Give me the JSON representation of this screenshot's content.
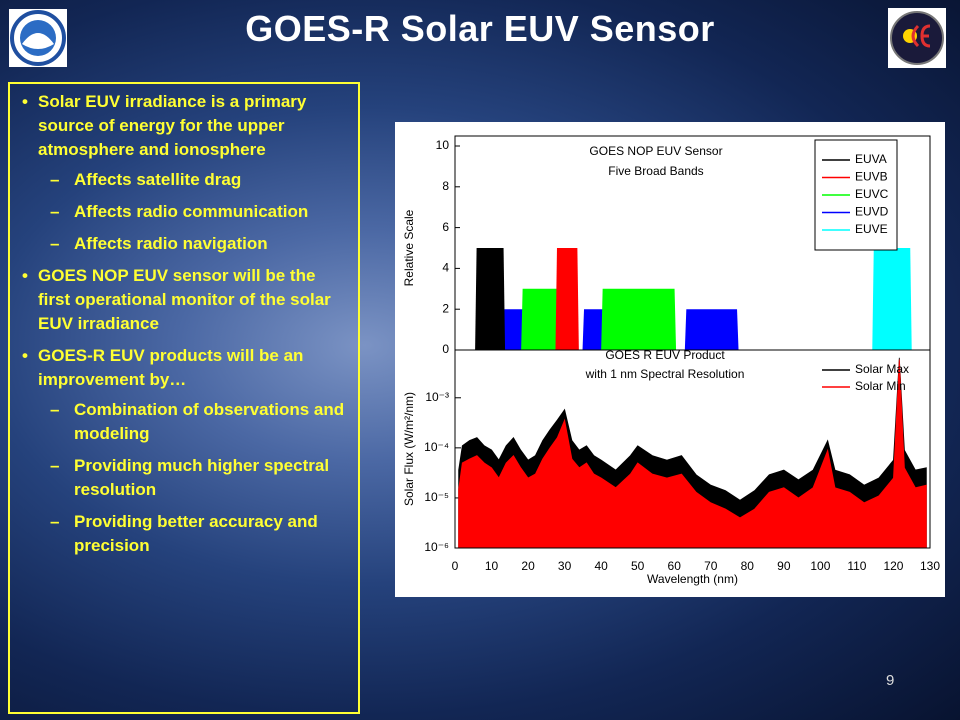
{
  "title": "GOES-R Solar EUV Sensor",
  "page_number": "9",
  "bullets": [
    {
      "text": "Solar EUV irradiance is a primary source of energy for the upper atmosphere and ionosphere",
      "sub": [
        "Affects satellite drag",
        "Affects radio communication",
        "Affects radio navigation"
      ]
    },
    {
      "text": "GOES NOP EUV sensor will be the first operational monitor of the solar EUV irradiance"
    },
    {
      "text": "GOES-R EUV products will be an improvement by…",
      "sub": [
        "Combination of observations and modeling",
        "Providing much higher spectral resolution",
        "Providing better accuracy and precision"
      ]
    }
  ],
  "chart_data": [
    {
      "type": "bands",
      "annotation": [
        "GOES NOP EUV Sensor",
        "Five Broad Bands"
      ],
      "ylabel": "Relative Scale",
      "xlim": [
        0,
        130
      ],
      "ylim": [
        0,
        10
      ],
      "yticks": [
        0,
        2,
        4,
        6,
        8,
        10
      ],
      "series": [
        {
          "name": "EUVA",
          "color": "#000000",
          "ranges": [
            [
              5.5,
              13.7
            ]
          ],
          "values": [
            5
          ]
        },
        {
          "name": "EUVB",
          "color": "#ff0000",
          "ranges": [
            [
              27.5,
              33.9
            ]
          ],
          "values": [
            5
          ]
        },
        {
          "name": "EUVC",
          "color": "#00ff00",
          "ranges": [
            [
              18.1,
              29.0
            ],
            [
              40.0,
              60.5
            ]
          ],
          "values": [
            3,
            3
          ]
        },
        {
          "name": "EUVD",
          "color": "#0000ff",
          "ranges": [
            [
              13.1,
              24.9
            ],
            [
              34.9,
              53.6
            ],
            [
              62.9,
              77.6
            ]
          ],
          "values": [
            2,
            2,
            2
          ]
        },
        {
          "name": "EUVE",
          "color": "#00ffff",
          "ranges": [
            [
              114.2,
              125.0
            ]
          ],
          "values": [
            5
          ]
        }
      ]
    },
    {
      "type": "area",
      "annotation": [
        "GOES R EUV Product",
        "with 1 nm Spectral Resolution"
      ],
      "xlabel": "Wavelength (nm)",
      "ylabel": "Solar Flux (W/m²/nm)",
      "log_y": true,
      "xlim": [
        0,
        130
      ],
      "ylim": [
        1e-06,
        0.009
      ],
      "xticks": [
        0,
        10,
        20,
        30,
        40,
        50,
        60,
        70,
        80,
        90,
        100,
        110,
        120,
        130
      ],
      "yticks": [
        {
          "value": 1e-06,
          "label": "10⁻⁶"
        },
        {
          "value": 1e-05,
          "label": "10⁻⁵"
        },
        {
          "value": 0.0001,
          "label": "10⁻⁴"
        },
        {
          "value": 0.001,
          "label": "10⁻³"
        }
      ],
      "x": [
        1,
        2,
        4,
        6,
        8,
        10,
        12,
        14,
        16,
        18,
        20,
        22,
        24,
        26,
        28,
        30,
        32,
        34,
        36,
        38,
        40,
        44,
        48,
        50,
        54,
        58,
        62,
        66,
        70,
        74,
        78,
        82,
        86,
        90,
        94,
        98,
        102,
        104,
        108,
        112,
        116,
        120,
        121.6,
        123,
        126,
        129
      ],
      "series": [
        {
          "name": "Solar Max",
          "color": "#000000",
          "values": [
            3.6e-05,
            0.00011,
            0.00014,
            0.00016,
            0.00011,
            9.1e-05,
            5.7e-05,
            0.00011,
            0.00016,
            9e-05,
            5.7e-05,
            7e-05,
            0.00014,
            0.00023,
            0.00036,
            0.00058,
            0.00014,
            9e-05,
            0.00011,
            7e-05,
            5.7e-05,
            3.6e-05,
            7e-05,
            0.00011,
            7e-05,
            5.7e-05,
            7e-05,
            2.9e-05,
            1.8e-05,
            1.4e-05,
            9e-06,
            1.4e-05,
            2.9e-05,
            3.6e-05,
            2.3e-05,
            3.6e-05,
            0.00014,
            3.6e-05,
            2.9e-05,
            1.8e-05,
            2.5e-05,
            5.7e-05,
            0.0063,
            9e-05,
            3.6e-05,
            4e-05
          ]
        },
        {
          "name": "Solar Min",
          "color": "#ff0000",
          "values": [
            1.5e-05,
            5e-05,
            6e-05,
            7e-05,
            5e-05,
            4e-05,
            2.5e-05,
            5e-05,
            7e-05,
            4e-05,
            2.5e-05,
            3e-05,
            6e-05,
            0.0001,
            0.00016,
            0.00036,
            6e-05,
            4e-05,
            5e-05,
            3e-05,
            2.5e-05,
            1.6e-05,
            3e-05,
            5e-05,
            3e-05,
            2.5e-05,
            3e-05,
            1.3e-05,
            8e-06,
            6e-06,
            4e-06,
            6e-06,
            1.3e-05,
            1.6e-05,
            1e-05,
            1.6e-05,
            9e-05,
            1.6e-05,
            1.3e-05,
            8e-06,
            1.1e-05,
            2.5e-05,
            0.0058,
            4e-05,
            1.6e-05,
            1.8e-05
          ]
        }
      ]
    }
  ]
}
